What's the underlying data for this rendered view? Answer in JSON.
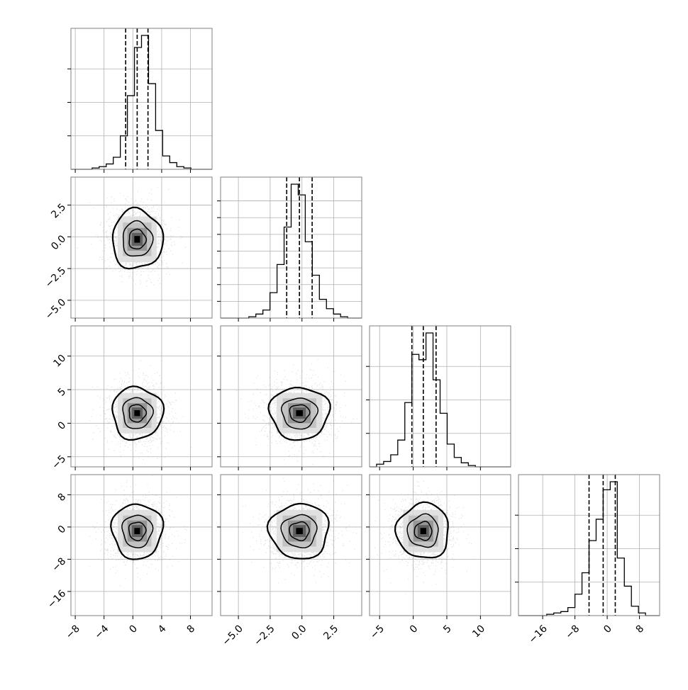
{
  "chart_data": {
    "type": "corner",
    "n_params": 4,
    "grid": true,
    "quantile_lines": "dashed",
    "colors": {
      "lines": "#000000",
      "grid": "#b0b0b0",
      "frame": "#808080",
      "points": "#808080"
    },
    "params": [
      {
        "center": 0.6,
        "sd": 1.8,
        "xlim": [
          -8.6,
          11.0
        ],
        "ticks": [
          -8,
          -4,
          0,
          4,
          8
        ],
        "tick_labels": [
          "−8",
          "−4",
          "0",
          "4",
          "8"
        ],
        "quantiles": [
          -1.0,
          0.6,
          2.1
        ],
        "hist": {
          "edges": [
            -8.6,
            -7.62,
            -6.64,
            -5.66,
            -4.68,
            -3.7,
            -2.72,
            -1.74,
            -0.76,
            0.22,
            1.2,
            2.18,
            3.16,
            4.14,
            5.12,
            6.1,
            7.08,
            8.06,
            9.04,
            10.02,
            11.0
          ],
          "counts": [
            0,
            0,
            0,
            1,
            2,
            4,
            9,
            25,
            55,
            91,
            100,
            64,
            29,
            10,
            5,
            2,
            1,
            0,
            0,
            0
          ]
        }
      },
      {
        "center": -0.2,
        "sd": 1.2,
        "xlim": [
          -6.4,
          4.7
        ],
        "ticks": [
          -5.0,
          -2.5,
          0.0,
          2.5
        ],
        "tick_labels": [
          "−5.0",
          "−2.5",
          "0.0",
          "2.5"
        ],
        "quantiles": [
          -1.2,
          -0.2,
          0.8
        ],
        "hist": {
          "edges": [
            -6.4,
            -5.845,
            -5.29,
            -4.735,
            -4.18,
            -3.625,
            -3.07,
            -2.515,
            -1.96,
            -1.405,
            -0.85,
            -0.295,
            0.26,
            0.815,
            1.37,
            1.925,
            2.48,
            3.035,
            3.59,
            4.145,
            4.7
          ],
          "counts": [
            0,
            0,
            0,
            0,
            1,
            3,
            6,
            19,
            40,
            68,
            100,
            92,
            57,
            32,
            14,
            7,
            3,
            1,
            0,
            0
          ]
        }
      },
      {
        "center": 1.5,
        "sd": 2.0,
        "xlim": [
          -6.5,
          14.5
        ],
        "ticks": [
          -5,
          0,
          5,
          10
        ],
        "tick_labels": [
          "−5",
          "0",
          "5",
          "10"
        ],
        "quantiles": [
          -0.2,
          1.5,
          3.4
        ],
        "hist": {
          "edges": [
            -6.5,
            -5.45,
            -4.4,
            -3.35,
            -2.3,
            -1.25,
            -0.2,
            0.85,
            1.9,
            2.95,
            4.0,
            5.05,
            6.1,
            7.15,
            8.2,
            9.25,
            10.3,
            11.35,
            12.4,
            13.45,
            14.5
          ],
          "counts": [
            0,
            2,
            4,
            9,
            20,
            48,
            84,
            80,
            100,
            65,
            40,
            17,
            7,
            3,
            1,
            0,
            0,
            0,
            0,
            0
          ]
        }
      },
      {
        "center": -1.0,
        "sd": 3.5,
        "xlim": [
          -22,
          13
        ],
        "ticks": [
          -16,
          -8,
          0,
          8
        ],
        "tick_labels": [
          "−16",
          "−8",
          "0",
          "8"
        ],
        "quantiles": [
          -4.5,
          -1.0,
          2.0
        ],
        "hist": {
          "edges": [
            -22,
            -20.25,
            -18.5,
            -16.75,
            -15,
            -13.25,
            -11.5,
            -9.75,
            -8,
            -6.25,
            -4.5,
            -2.75,
            -1,
            0.75,
            2.5,
            4.25,
            6,
            7.75,
            9.5,
            11.25,
            13
          ],
          "counts": [
            0,
            0,
            0,
            0,
            1,
            2,
            3,
            6,
            16,
            32,
            56,
            72,
            94,
            100,
            43,
            22,
            7,
            2,
            0,
            0
          ]
        }
      }
    ],
    "diag_y_ticks": [
      {
        "count": 3
      },
      {
        "count": 7
      },
      {
        "count": 3
      },
      {
        "count": 3
      }
    ]
  }
}
